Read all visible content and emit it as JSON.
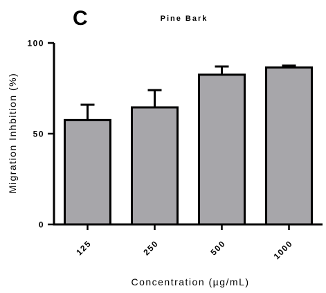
{
  "panel_label": "C",
  "chart_data": {
    "type": "bar",
    "title": "Pine Bark",
    "xlabel": "Concentration (µg/mL)",
    "ylabel": "Migration Inhbition (%)",
    "categories": [
      "125",
      "250",
      "500",
      "1000"
    ],
    "values": [
      57.5,
      64.5,
      82.5,
      86.5
    ],
    "errors": [
      8.5,
      9.5,
      4.5,
      1.0
    ],
    "ylim": [
      0,
      100
    ],
    "yticks": [
      0,
      50,
      100
    ],
    "grid": false,
    "colors": {
      "bar_fill": "#a7a6aa",
      "bar_stroke": "#000000",
      "axis": "#000000"
    }
  }
}
